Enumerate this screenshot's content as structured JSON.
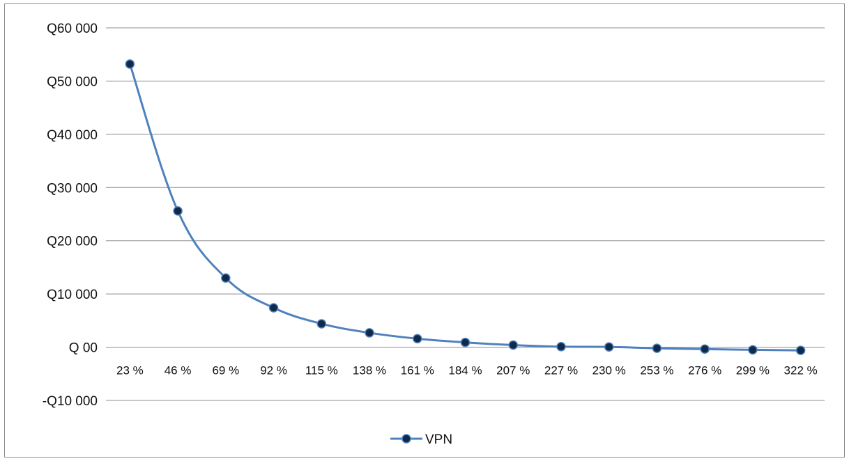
{
  "chart_data": {
    "type": "line",
    "title": "",
    "xlabel": "",
    "ylabel": "",
    "categories": [
      "23 %",
      "46 %",
      "69 %",
      "92 %",
      "115 %",
      "138 %",
      "161 %",
      "184 %",
      "207 %",
      "227 %",
      "230 %",
      "253 %",
      "276 %",
      "299 %",
      "322 %"
    ],
    "series": [
      {
        "name": "VPN",
        "values": [
          53200,
          25600,
          13000,
          7400,
          4400,
          2700,
          1600,
          900,
          400,
          100,
          50,
          -200,
          -350,
          -500,
          -600
        ]
      }
    ],
    "ylim": [
      -10000,
      60000
    ],
    "y_ticks": [
      60000,
      50000,
      40000,
      30000,
      20000,
      10000,
      0,
      -10000
    ],
    "y_tick_labels": [
      "Q60 000",
      "Q50 000",
      "Q40 000",
      "Q30 000",
      "Q20 000",
      "Q10 000",
      "Q 00",
      "-Q10 000"
    ],
    "grid": true,
    "legend": "bottom",
    "colors": {
      "line": "#4f81bd",
      "marker_fill": "#0f2a4a",
      "grid": "#8c8c8c"
    }
  }
}
